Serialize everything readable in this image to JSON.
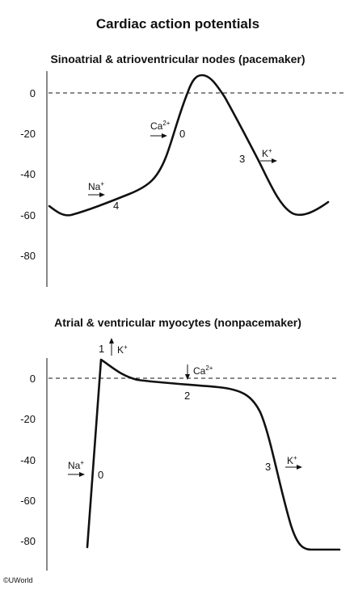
{
  "title": "Cardiac action potentials",
  "copyright": "©UWorld",
  "colors": {
    "ink": "#111111",
    "background": "#ffffff"
  },
  "panels": [
    {
      "subtitle": "Sinoatrial & atrioventricular nodes (pacemaker)",
      "yticks": [
        "0",
        "-20",
        "-40",
        "-60",
        "-80"
      ],
      "phases": {
        "p4": "4",
        "p0": "0",
        "p3": "3"
      },
      "ions": {
        "na": {
          "base": "Na",
          "sup": "+"
        },
        "ca": {
          "base": "Ca",
          "sup": "2+"
        },
        "k": {
          "base": "K",
          "sup": "+"
        }
      }
    },
    {
      "subtitle": "Atrial & ventricular myocytes (nonpacemaker)",
      "yticks": [
        "0",
        "-20",
        "-40",
        "-60",
        "-80"
      ],
      "phases": {
        "p1": "1",
        "p2": "2",
        "p0": "0",
        "p3": "3"
      },
      "ions": {
        "k1": {
          "base": "K",
          "sup": "+"
        },
        "ca": {
          "base": "Ca",
          "sup": "2+"
        },
        "na": {
          "base": "Na",
          "sup": "+"
        },
        "k3": {
          "base": "K",
          "sup": "+"
        }
      }
    }
  ],
  "chart_data": [
    {
      "type": "line",
      "title": "Sinoatrial & atrioventricular nodes (pacemaker)",
      "ylim": [
        -95,
        10
      ],
      "yticks": [
        0,
        -20,
        -40,
        -60,
        -80
      ],
      "reference_line": 0,
      "series": [
        {
          "y": [
            -56,
            -60,
            -59,
            -55,
            -51,
            -47,
            -40,
            -28,
            -12,
            4,
            8,
            6,
            -2,
            -15,
            -28,
            -42,
            -54,
            -59,
            -59,
            -57,
            -54
          ]
        }
      ]
    },
    {
      "type": "line",
      "title": "Atrial & ventricular myocytes (nonpacemaker)",
      "ylim": [
        -95,
        10
      ],
      "yticks": [
        0,
        -20,
        -40,
        -60,
        -80
      ],
      "reference_line": 0,
      "series": [
        {
          "y": [
            -83,
            9,
            4,
            1,
            -1,
            -2,
            -2.5,
            -3,
            -4,
            -5,
            -6,
            -8,
            -12,
            -25,
            -50,
            -72,
            -83,
            -84,
            -84
          ]
        }
      ]
    }
  ]
}
